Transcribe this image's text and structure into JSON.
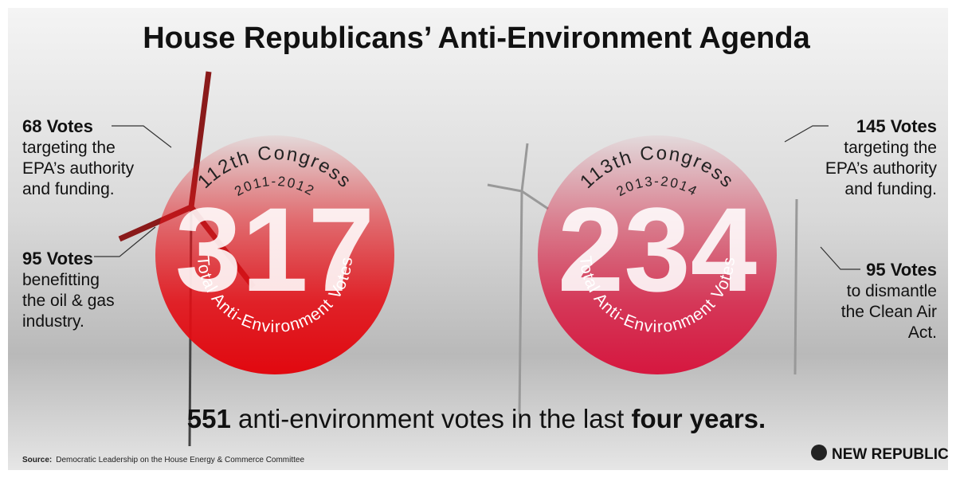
{
  "title": "House Republicans’ Anti-Environment Agenda",
  "circles": [
    {
      "congress": "112th Congress",
      "years": "2011-2012",
      "total": "317",
      "caption": "Total Anti-Environment Votes"
    },
    {
      "congress": "113th Congress",
      "years": "2013-2014",
      "total": "234",
      "caption": "Total Anti-Environment Votes"
    }
  ],
  "annotations": [
    {
      "headline": "68 Votes",
      "lines": [
        "targeting the",
        "EPA’s authority",
        "and funding."
      ]
    },
    {
      "headline": "95 Votes",
      "lines": [
        "benefitting",
        "the oil & gas",
        "industry."
      ]
    },
    {
      "headline": "145 Votes",
      "lines": [
        "targeting the",
        "EPA’s authority",
        "and funding."
      ]
    },
    {
      "headline": "95 Votes",
      "lines": [
        "to dismantle",
        "the Clean Air",
        "Act."
      ]
    }
  ],
  "summary": {
    "count": "551",
    "middle": " anti-environment votes in the last ",
    "period": "four years."
  },
  "source": {
    "label": "Source:",
    "text": "Democratic Leadership on the House Energy & Commerce Committee"
  },
  "brand": "NEW REPUBLIC"
}
